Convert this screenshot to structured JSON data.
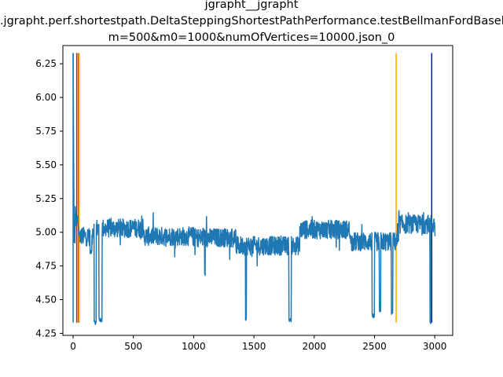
{
  "chart_data": {
    "type": "line",
    "title_lines": [
      "jgrapht__jgrapht",
      "org.jgrapht.perf.shortestpath.DeltaSteppingShortestPathPerformance.testBellmanFordBaseline",
      "m=500&m0=1000&numOfVertices=10000.json_0"
    ],
    "xlabel": "",
    "ylabel": "",
    "xlim": [
      -85,
      3149
    ],
    "ylim": [
      4.235,
      6.385
    ],
    "x_ticks": [
      0,
      500,
      1000,
      1500,
      2000,
      2500,
      3000
    ],
    "y_ticks": [
      4.25,
      4.5,
      4.75,
      5.0,
      5.25,
      5.5,
      5.75,
      6.0,
      6.25
    ],
    "y_tick_labels": [
      "4.25",
      "4.50",
      "4.75",
      "5.00",
      "5.25",
      "5.50",
      "5.75",
      "6.00",
      "6.25"
    ],
    "grid": false,
    "series": [
      {
        "color": "#1f77b4",
        "baseline": 4.97,
        "noise_amplitude": 0.07,
        "start_segment": [
          [
            0,
            6.33
          ],
          [
            8,
            4.93
          ],
          [
            15,
            4.92
          ],
          [
            18,
            5.19
          ],
          [
            25,
            5.05
          ],
          [
            35,
            5.12
          ],
          [
            50,
            4.98
          ]
        ],
        "plateaus": [
          {
            "x": [
              160,
              580
            ],
            "level": 5.03
          },
          {
            "x": [
              580,
              1000
            ],
            "level": 4.97
          },
          {
            "x": [
              1000,
              1350
            ],
            "level": 4.96
          },
          {
            "x": [
              1350,
              1880
            ],
            "level": 4.9
          },
          {
            "x": [
              1880,
              2300
            ],
            "level": 5.02
          },
          {
            "x": [
              2300,
              2700
            ],
            "level": 4.93
          },
          {
            "x": [
              2700,
              3000
            ],
            "level": 5.06
          }
        ],
        "dips": [
          {
            "x": [
              140,
              155
            ],
            "y": 4.85
          },
          {
            "x": [
              175,
              192
            ],
            "y": 4.33
          },
          {
            "x": [
              215,
              240
            ],
            "y": 4.35
          },
          {
            "x": [
              1090,
              1095
            ],
            "y": 4.69
          },
          {
            "x": [
              1430,
              1438
            ],
            "y": 4.35
          },
          {
            "x": [
              1790,
              1810
            ],
            "y": 4.35
          },
          {
            "x": [
              2480,
              2500
            ],
            "y": 4.38
          },
          {
            "x": [
              2540,
              2552
            ],
            "y": 4.42
          },
          {
            "x": [
              2640,
              2652
            ],
            "y": 4.4
          },
          {
            "x": [
              2960,
              2968
            ],
            "y": 4.33
          }
        ],
        "end_value": 4.97,
        "x_end": 3000
      }
    ],
    "vlines": [
      {
        "x": 0,
        "color": "#1f77b4",
        "ymin": 4.33,
        "ymax": 6.33
      },
      {
        "x": 30,
        "color": "#ff0000",
        "ymin": 4.33,
        "ymax": 6.33
      },
      {
        "x": 45,
        "color": "#008000",
        "ymin": 4.33,
        "ymax": 6.33
      },
      {
        "x": 50,
        "color": "#ffa500",
        "ymin": 4.33,
        "ymax": 6.33
      },
      {
        "x": 2680,
        "color": "#ffa500",
        "ymin": 4.33,
        "ymax": 6.33
      },
      {
        "x": 2975,
        "color": "#0000ff",
        "ymin": 4.33,
        "ymax": 6.33
      }
    ]
  }
}
